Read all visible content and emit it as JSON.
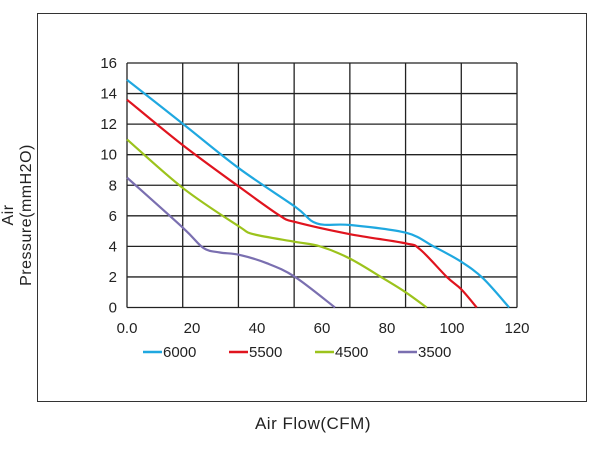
{
  "chart_data": {
    "type": "line",
    "title": "",
    "xlabel": "Air Flow(CFM)",
    "ylabel": "Air Pressure(mmH2O)",
    "xlim": [
      0,
      120
    ],
    "ylim": [
      0,
      16
    ],
    "xticks": [
      "0.0",
      "20",
      "40",
      "60",
      "80",
      "100",
      "120"
    ],
    "xtick_values": [
      0,
      20,
      40,
      60,
      80,
      100,
      120
    ],
    "yticks": [
      "0",
      "2",
      "4",
      "6",
      "8",
      "10",
      "12",
      "14",
      "16"
    ],
    "ytick_values": [
      0,
      2,
      4,
      6,
      8,
      10,
      12,
      14,
      16
    ],
    "grid": true,
    "legend_position": "bottom",
    "series": [
      {
        "name": "6000",
        "color": "#1fa8e0",
        "x": [
          0,
          17.3,
          34.5,
          51.7,
          58.4,
          68.6,
          85.7,
          94.3,
          102.8,
          109.6,
          117.6
        ],
        "y": [
          14.9,
          12.0,
          9.1,
          6.6,
          5.5,
          5.4,
          4.9,
          4.0,
          3.0,
          1.9,
          0
        ]
      },
      {
        "name": "5500",
        "color": "#e0141e",
        "x": [
          0,
          17.3,
          34.5,
          47.1,
          51.7,
          68.6,
          85.7,
          90.2,
          98.4,
          102.8,
          107.6
        ],
        "y": [
          13.6,
          10.6,
          7.9,
          6.0,
          5.6,
          4.8,
          4.2,
          3.8,
          2.0,
          1.2,
          0
        ]
      },
      {
        "name": "4500",
        "color": "#9cc31c",
        "x": [
          0,
          17.3,
          34.5,
          38.9,
          51.7,
          59.4,
          68.6,
          78.9,
          85.7,
          92.2
        ],
        "y": [
          11.0,
          7.8,
          5.3,
          4.8,
          4.3,
          4.0,
          3.2,
          1.9,
          1.0,
          0
        ]
      },
      {
        "name": "3500",
        "color": "#7a6fb0",
        "x": [
          0,
          17.3,
          23.5,
          28.6,
          34.5,
          43.0,
          51.7,
          64.0
        ],
        "y": [
          8.5,
          5.2,
          3.9,
          3.6,
          3.45,
          2.9,
          2.0,
          0
        ]
      }
    ]
  }
}
